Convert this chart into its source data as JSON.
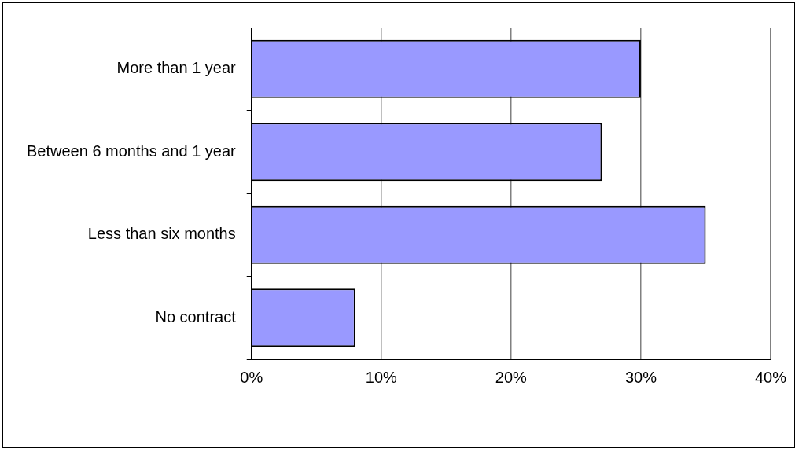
{
  "chart_data": {
    "type": "bar",
    "orientation": "horizontal",
    "categories": [
      "More than 1 year",
      "Between 6 months and 1 year",
      "Less than six months",
      "No contract"
    ],
    "values": [
      30,
      27,
      35,
      8
    ],
    "color": "#9999ff",
    "xlim": [
      0,
      40
    ],
    "xticks": [
      {
        "value": 0,
        "label": "0%"
      },
      {
        "value": 10,
        "label": "10%"
      },
      {
        "value": 20,
        "label": "20%"
      },
      {
        "value": 30,
        "label": "30%"
      },
      {
        "value": 40,
        "label": "40%"
      }
    ],
    "grid": "x",
    "legend": false
  }
}
